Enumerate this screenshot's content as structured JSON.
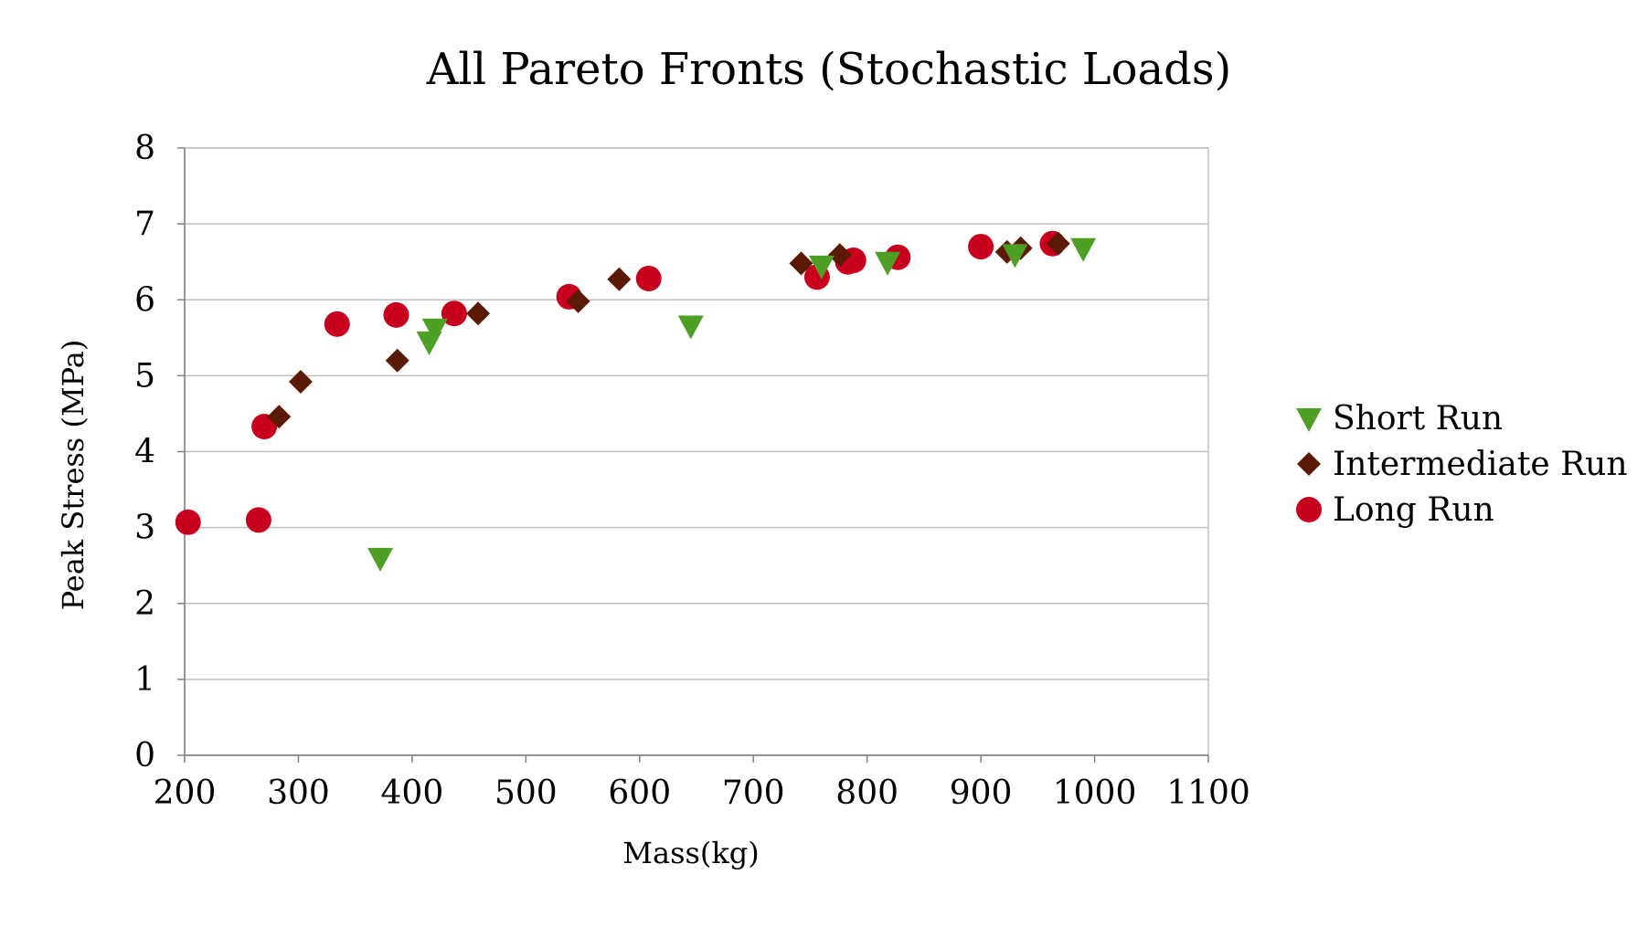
{
  "chart_data": {
    "type": "scatter",
    "title": "All Pareto Fronts (Stochastic Loads)",
    "xlabel": "Mass(kg)",
    "ylabel": "Peak Stress (MPa)",
    "xlim": [
      200,
      1100
    ],
    "ylim": [
      0,
      8
    ],
    "x_ticks": [
      "200",
      "300",
      "400",
      "500",
      "600",
      "700",
      "800",
      "900",
      "1000",
      "1100"
    ],
    "y_ticks": [
      "0",
      "1",
      "2",
      "3",
      "4",
      "5",
      "6",
      "7",
      "8"
    ],
    "grid": "horizontal",
    "legend_position": "right",
    "series": [
      {
        "name": "Short Run",
        "marker": "triangle-down",
        "color": "#4ea024",
        "points": [
          {
            "x": 372,
            "y": 2.6
          },
          {
            "x": 415,
            "y": 5.45
          },
          {
            "x": 420,
            "y": 5.62
          },
          {
            "x": 645,
            "y": 5.66
          },
          {
            "x": 760,
            "y": 6.45
          },
          {
            "x": 818,
            "y": 6.5
          },
          {
            "x": 930,
            "y": 6.6
          },
          {
            "x": 990,
            "y": 6.68
          }
        ]
      },
      {
        "name": "Intermediate Run",
        "marker": "diamond",
        "color": "#5a1a04",
        "points": [
          {
            "x": 283,
            "y": 4.46
          },
          {
            "x": 302,
            "y": 4.92
          },
          {
            "x": 387,
            "y": 5.2
          },
          {
            "x": 458,
            "y": 5.82
          },
          {
            "x": 546,
            "y": 5.98
          },
          {
            "x": 582,
            "y": 6.27
          },
          {
            "x": 742,
            "y": 6.48
          },
          {
            "x": 776,
            "y": 6.59
          },
          {
            "x": 923,
            "y": 6.63
          },
          {
            "x": 935,
            "y": 6.68
          },
          {
            "x": 968,
            "y": 6.74
          }
        ]
      },
      {
        "name": "Long Run",
        "marker": "circle",
        "color": "#c8001e",
        "points": [
          {
            "x": 203,
            "y": 3.07
          },
          {
            "x": 265,
            "y": 3.1
          },
          {
            "x": 270,
            "y": 4.33
          },
          {
            "x": 334,
            "y": 5.68
          },
          {
            "x": 386,
            "y": 5.8
          },
          {
            "x": 437,
            "y": 5.82
          },
          {
            "x": 538,
            "y": 6.04
          },
          {
            "x": 608,
            "y": 6.28
          },
          {
            "x": 756,
            "y": 6.3
          },
          {
            "x": 783,
            "y": 6.5
          },
          {
            "x": 788,
            "y": 6.52
          },
          {
            "x": 827,
            "y": 6.56
          },
          {
            "x": 900,
            "y": 6.7
          },
          {
            "x": 963,
            "y": 6.74
          }
        ]
      }
    ]
  }
}
